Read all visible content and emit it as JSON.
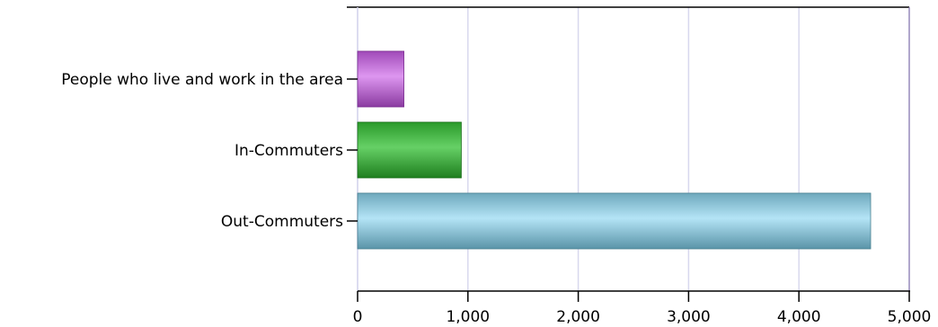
{
  "chart_data": {
    "type": "bar",
    "orientation": "horizontal",
    "categories": [
      "People who live and work in the area",
      "In-Commuters",
      "Out-Commuters"
    ],
    "values": [
      420,
      940,
      4650
    ],
    "colors": [
      "#c070d8",
      "#3aa83a",
      "#8ec8dc"
    ],
    "xlim": [
      0,
      5000
    ],
    "xticks": [
      0,
      1000,
      2000,
      3000,
      4000,
      5000
    ],
    "xtick_labels": [
      "0",
      "1,000",
      "2,000",
      "3,000",
      "4,000",
      "5,000"
    ],
    "grid": true,
    "legend": "none",
    "title": "",
    "xlabel": "",
    "ylabel": ""
  }
}
